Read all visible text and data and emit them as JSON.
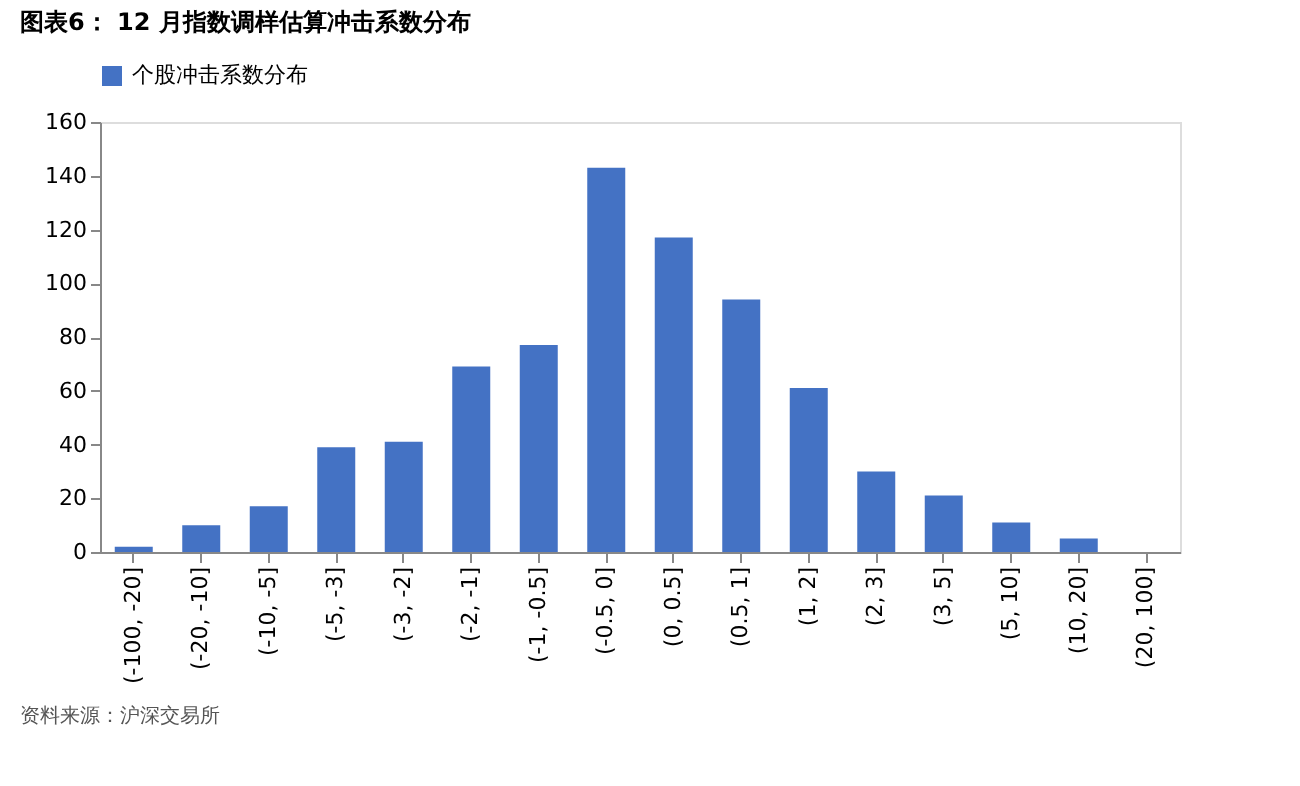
{
  "chart_data": {
    "type": "bar",
    "title": "图表6： 12 月指数调样估算冲击系数分布",
    "categories": [
      "(-100, -20]",
      "(-20, -10]",
      "(-10, -5]",
      "(-5, -3]",
      "(-3, -2]",
      "(-2, -1]",
      "(-1, -0.5]",
      "(-0.5, 0]",
      "(0, 0.5]",
      "(0.5, 1]",
      "(1, 2]",
      "(2, 3]",
      "(3, 5]",
      "(5, 10]",
      "(10, 20]",
      "(20, 100]"
    ],
    "series": [
      {
        "name": "个股冲击系数分布",
        "color": "#4472c4",
        "values": [
          2,
          10,
          17,
          39,
          41,
          69,
          77,
          143,
          117,
          94,
          61,
          30,
          21,
          11,
          5,
          0
        ]
      }
    ],
    "ylim": [
      0,
      160
    ],
    "yticks": [
      0,
      20,
      40,
      60,
      80,
      100,
      120,
      140,
      160
    ],
    "grid": false,
    "legend": "top",
    "annotations": [
      "资料来源：沪深交易所"
    ]
  }
}
